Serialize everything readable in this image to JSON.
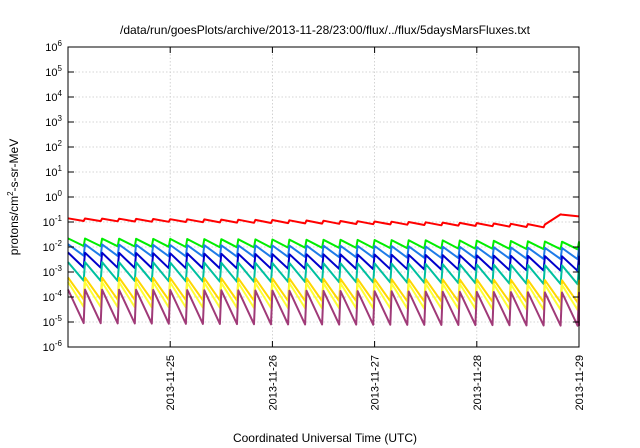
{
  "chart_data": {
    "type": "line",
    "title": "/data/run/goesPlots/archive/2013-11-28/23:00/flux/../flux/5daysMarsFluxes.txt",
    "xlabel": "Coordinated Universal Time (UTC)",
    "ylabel": {
      "prefix": "protons/cm",
      "sup": "2",
      "suffix": "-s-sr-MeV"
    },
    "yscale": "log",
    "ylim": [
      1e-06,
      1000000.0
    ],
    "xlim": [
      "2013-11-24T00:00",
      "2013-11-29T00:00"
    ],
    "grid": true,
    "y_ticks": [
      {
        "value": 1e-06,
        "base": "10",
        "exp": "-6"
      },
      {
        "value": 1e-05,
        "base": "10",
        "exp": "-5"
      },
      {
        "value": 0.0001,
        "base": "10",
        "exp": "-4"
      },
      {
        "value": 0.001,
        "base": "10",
        "exp": "-3"
      },
      {
        "value": 0.01,
        "base": "10",
        "exp": "-2"
      },
      {
        "value": 0.1,
        "base": "10",
        "exp": "-1"
      },
      {
        "value": 1,
        "base": "10",
        "exp": "0"
      },
      {
        "value": 10,
        "base": "10",
        "exp": "1"
      },
      {
        "value": 100,
        "base": "10",
        "exp": "2"
      },
      {
        "value": 1000,
        "base": "10",
        "exp": "3"
      },
      {
        "value": 10000,
        "base": "10",
        "exp": "4"
      },
      {
        "value": 100000,
        "base": "10",
        "exp": "5"
      },
      {
        "value": 1000000,
        "base": "10",
        "exp": "6"
      }
    ],
    "x_ticks": [
      {
        "value": "2013-11-25",
        "label": "2013-11-25"
      },
      {
        "value": "2013-11-26",
        "label": "2013-11-26"
      },
      {
        "value": "2013-11-27",
        "label": "2013-11-27"
      },
      {
        "value": "2013-11-28",
        "label": "2013-11-28"
      },
      {
        "value": "2013-11-29",
        "label": "2013-11-29"
      }
    ],
    "sawtooth_period_hours": 4,
    "series": [
      {
        "color": "#ff0000",
        "peak": [
          0.14,
          0.13,
          0.12,
          0.105,
          0.09,
          0.075
        ],
        "trough": [
          0.11,
          0.1,
          0.09,
          0.08,
          0.068,
          0.055
        ],
        "spike": {
          "date": "2013-11-28T18:00",
          "value": 0.22
        }
      },
      {
        "color": "#00ee00",
        "peak": [
          0.022,
          0.021,
          0.02,
          0.019,
          0.018,
          0.016
        ],
        "trough": [
          0.011,
          0.01,
          0.0095,
          0.009,
          0.0085,
          0.008
        ]
      },
      {
        "color": "#1e7be8",
        "peak": [
          0.013,
          0.012,
          0.0115,
          0.011,
          0.01,
          0.009
        ],
        "trough": [
          0.0045,
          0.0042,
          0.004,
          0.0038,
          0.0035,
          0.0032
        ]
      },
      {
        "color": "#0000cc",
        "peak": [
          0.006,
          0.0056,
          0.0052,
          0.005,
          0.0046,
          0.0042
        ],
        "trough": [
          0.0015,
          0.0014,
          0.00135,
          0.0013,
          0.0012,
          0.0011
        ]
      },
      {
        "color": "#00c0a0",
        "peak": [
          0.0025,
          0.0024,
          0.0023,
          0.0022,
          0.002,
          0.0018
        ],
        "trough": [
          0.00045,
          0.00042,
          0.0004,
          0.00038,
          0.00035,
          0.00032
        ]
      },
      {
        "color": "#ffd700",
        "peak": [
          0.0006,
          0.00058,
          0.00055,
          0.00052,
          0.0005,
          0.00046
        ],
        "trough": [
          8e-05,
          7.5e-05,
          7e-05,
          6.8e-05,
          6.5e-05,
          6e-05
        ]
      },
      {
        "color": "#ffff33",
        "peak": [
          0.0004,
          0.00038,
          0.00036,
          0.00035,
          0.00033,
          0.0003
        ],
        "trough": [
          4e-05,
          3.8e-05,
          3.6e-05,
          3.5e-05,
          3.3e-05,
          3e-05
        ]
      },
      {
        "color": "#a03a78",
        "peak": [
          0.0002,
          0.00019,
          0.00018,
          0.00017,
          0.00016,
          0.00015
        ],
        "trough": [
          9e-06,
          8.5e-06,
          8e-06,
          7.8e-06,
          7.5e-06,
          7e-06
        ]
      }
    ]
  }
}
